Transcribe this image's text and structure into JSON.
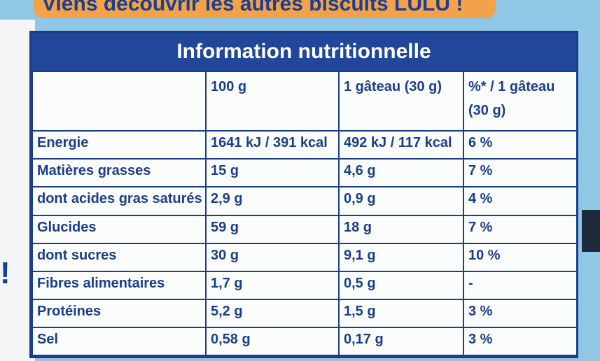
{
  "banner": "Viens découvrir les autres biscuits LULU !",
  "side_mark": "!",
  "title": "Information nutritionnelle",
  "columns": [
    "",
    "100 g",
    "1 gâteau (30 g)",
    "%* / 1 gâteau (30 g)"
  ],
  "rows": [
    [
      "Energie",
      "1641 kJ / 391 kcal",
      "492 kJ / 117 kcal",
      "6 %"
    ],
    [
      "Matières grasses",
      "15 g",
      "4,6 g",
      "7 %"
    ],
    [
      "dont acides gras saturés",
      "2,9 g",
      "0,9 g",
      "4 %"
    ],
    [
      "Glucides",
      "59 g",
      "18 g",
      "7 %"
    ],
    [
      "dont sucres",
      "30 g",
      "9,1 g",
      "10 %"
    ],
    [
      "Fibres alimentaires",
      "1,7 g",
      "0,5 g",
      "-"
    ],
    [
      "Protéines",
      "5,2 g",
      "1,5 g",
      "3 %"
    ],
    [
      "Sel",
      "0,58 g",
      "0,17 g",
      "3 %"
    ]
  ],
  "colors": {
    "brand_blue": "#21469a",
    "banner_orange": "#f3a24a",
    "background_blue": "#8fc7e4"
  }
}
